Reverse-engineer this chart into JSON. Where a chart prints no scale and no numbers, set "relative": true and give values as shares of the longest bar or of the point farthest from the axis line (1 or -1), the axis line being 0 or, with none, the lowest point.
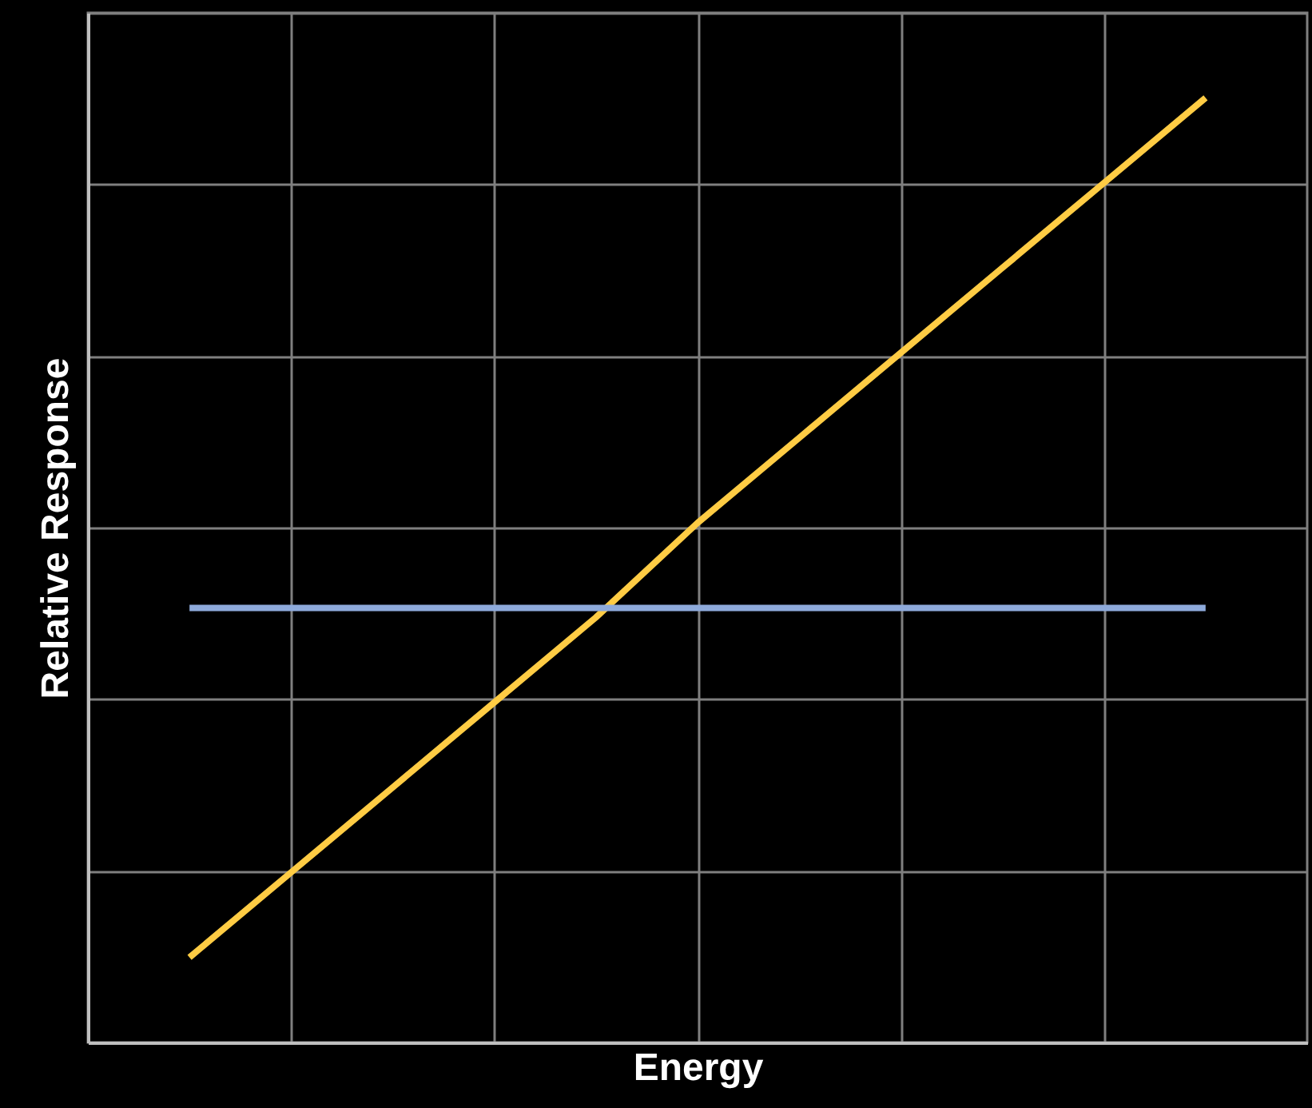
{
  "chart_data": {
    "type": "line",
    "relative": true,
    "xlabel": "Energy",
    "ylabel": "Relative Response",
    "categories": [
      null,
      null,
      null,
      null,
      null,
      null,
      null,
      null,
      null,
      null,
      null
    ],
    "series": [
      {
        "color": "#ffcc44",
        "values": [
          0.09,
          0.18,
          0.27,
          0.36,
          0.45,
          0.55,
          0.64,
          0.73,
          0.82,
          0.91,
          1
        ]
      },
      {
        "color": "#8eaadb",
        "values": [
          0.46,
          0.46,
          0.46,
          0.46,
          0.46,
          0.46,
          0.46,
          0.46,
          0.46,
          0.46,
          0.46
        ]
      }
    ],
    "grid": true,
    "line_style": "solid",
    "marker": "none"
  }
}
